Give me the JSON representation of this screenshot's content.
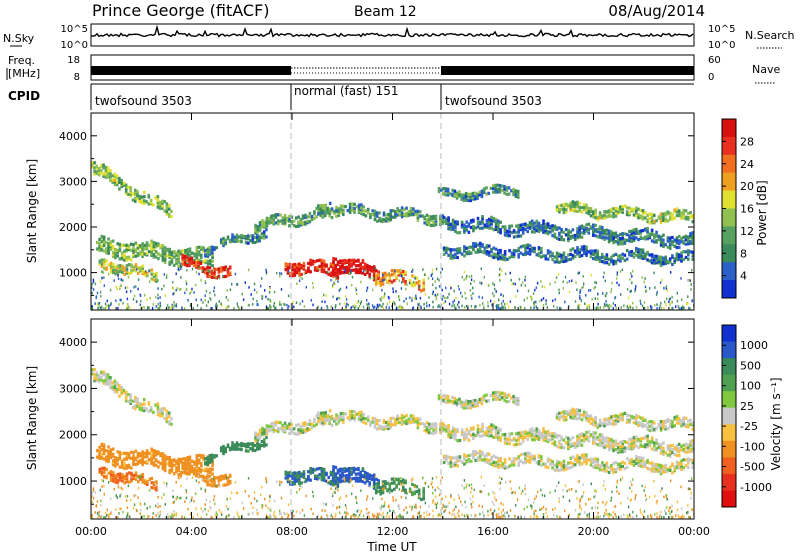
{
  "header": {
    "station": "Prince George (fitACF)",
    "beam": "Beam 12",
    "date": "08/Aug/2014"
  },
  "noise_panel": {
    "left_label": "N.Sky",
    "right_label": "N.Search",
    "left_ticks": [
      "10^5",
      "10^0"
    ],
    "right_ticks": [
      "10^5",
      "10^0"
    ]
  },
  "freq_panel": {
    "left_label_1": "Freq.",
    "left_label_2": "[MHz]",
    "right_label": "Nave",
    "left_ticks": [
      "18",
      "8"
    ],
    "right_ticks": [
      "60",
      "0"
    ]
  },
  "cpid": {
    "label": "CPID",
    "segments": [
      {
        "name": "twofsound 3503",
        "start_h": 0,
        "end_h": 8
      },
      {
        "name": "normal (fast) 151",
        "start_h": 8,
        "end_h": 14
      },
      {
        "name": "twofsound 3503",
        "start_h": 14,
        "end_h": 24
      }
    ]
  },
  "colors": {
    "power_scale": [
      "#1030d0",
      "#2a60c8",
      "#3a8a5a",
      "#58a060",
      "#90c050",
      "#e0e030",
      "#f0a020",
      "#f07020",
      "#e83020",
      "#d81010"
    ],
    "velocity_scale": [
      "#1030d0",
      "#2a58c8",
      "#3a8a5a",
      "#4fa050",
      "#80c840",
      "#c8c8c8",
      "#f8c040",
      "#f09020",
      "#f06020",
      "#e83020",
      "#e01010"
    ],
    "ground_scatter": "#c8c8c8"
  },
  "chart_data": [
    {
      "type": "heatmap",
      "name": "Power",
      "ylabel": "Slant Range [km]",
      "colorbar_label": "Power [dB]",
      "colorbar_ticks": [
        "28",
        "24",
        "20",
        "16",
        "12",
        "8",
        "4"
      ],
      "x_ticks": [
        "00:00",
        "04:00",
        "08:00",
        "12:00",
        "16:00",
        "20:00",
        "00:00"
      ],
      "y_ticks": [
        "1000",
        "2000",
        "3000",
        "4000"
      ],
      "ylim": [
        180,
        4500
      ],
      "xlim_hours": [
        0,
        24
      ],
      "scatter_bands": [
        {
          "t0": 0.0,
          "t1": 3.2,
          "r_start": 3300,
          "r_end": 2300,
          "width": 300,
          "power": 14
        },
        {
          "t0": 0.2,
          "t1": 4.8,
          "r_start": 1600,
          "r_end": 1300,
          "width": 400,
          "power": 13
        },
        {
          "t0": 0.3,
          "t1": 2.6,
          "r_start": 1250,
          "r_end": 900,
          "width": 250,
          "power": 16
        },
        {
          "t0": 3.6,
          "t1": 5.5,
          "r_start": 1200,
          "r_end": 1000,
          "width": 250,
          "power": 27
        },
        {
          "t0": 4.5,
          "t1": 7.0,
          "r_start": 1500,
          "r_end": 1900,
          "width": 200,
          "power": 9
        },
        {
          "t0": 6.5,
          "t1": 9.5,
          "r_start": 2000,
          "r_end": 2350,
          "width": 250,
          "power": 11
        },
        {
          "t0": 7.7,
          "t1": 9.8,
          "r_start": 1150,
          "r_end": 1050,
          "width": 300,
          "power": 28
        },
        {
          "t0": 9.6,
          "t1": 11.4,
          "r_start": 1250,
          "r_end": 950,
          "width": 350,
          "power": 30
        },
        {
          "t0": 9.0,
          "t1": 14.0,
          "r_start": 2400,
          "r_end": 2200,
          "width": 250,
          "power": 11
        },
        {
          "t0": 11.3,
          "t1": 13.2,
          "r_start": 900,
          "r_end": 800,
          "width": 300,
          "power": 21
        },
        {
          "t0": 13.8,
          "t1": 17.0,
          "r_start": 2700,
          "r_end": 2800,
          "width": 200,
          "power": 9
        },
        {
          "t0": 14.0,
          "t1": 24.0,
          "r_start": 2100,
          "r_end": 1700,
          "width": 300,
          "power": 8
        },
        {
          "t0": 14.0,
          "t1": 24.0,
          "r_start": 1500,
          "r_end": 1300,
          "width": 250,
          "power": 8
        },
        {
          "t0": 18.5,
          "t1": 24.0,
          "r_start": 2400,
          "r_end": 2200,
          "width": 250,
          "power": 14
        }
      ]
    },
    {
      "type": "heatmap",
      "name": "Velocity",
      "ylabel": "Slant Range [km]",
      "xlabel": "Time UT",
      "colorbar_label": "Velocity [m s⁻¹]",
      "colorbar_ticks": [
        "1000",
        "500",
        "100",
        "25",
        "-25",
        "-100",
        "-500",
        "-1000"
      ],
      "x_ticks": [
        "00:00",
        "04:00",
        "08:00",
        "12:00",
        "16:00",
        "20:00",
        "00:00"
      ],
      "y_ticks": [
        "1000",
        "2000",
        "3000",
        "4000"
      ],
      "ylim": [
        180,
        4500
      ],
      "xlim_hours": [
        0,
        24
      ],
      "scatter_bands": [
        {
          "t0": 0.0,
          "t1": 3.2,
          "r_start": 3300,
          "r_end": 2300,
          "width": 300,
          "velocity": 0
        },
        {
          "t0": 0.2,
          "t1": 4.8,
          "r_start": 1600,
          "r_end": 1300,
          "width": 400,
          "velocity": -150
        },
        {
          "t0": 0.3,
          "t1": 2.6,
          "r_start": 1250,
          "r_end": 900,
          "width": 250,
          "velocity": -300
        },
        {
          "t0": 3.6,
          "t1": 5.5,
          "r_start": 1200,
          "r_end": 1000,
          "width": 250,
          "velocity": -200
        },
        {
          "t0": 4.5,
          "t1": 7.0,
          "r_start": 1500,
          "r_end": 1900,
          "width": 200,
          "velocity": 150
        },
        {
          "t0": 6.5,
          "t1": 9.5,
          "r_start": 2000,
          "r_end": 2350,
          "width": 250,
          "velocity": 0
        },
        {
          "t0": 7.7,
          "t1": 9.8,
          "r_start": 1150,
          "r_end": 1050,
          "width": 300,
          "velocity": 250
        },
        {
          "t0": 9.6,
          "t1": 11.4,
          "r_start": 1250,
          "r_end": 950,
          "width": 350,
          "velocity": 300
        },
        {
          "t0": 9.0,
          "t1": 14.0,
          "r_start": 2400,
          "r_end": 2200,
          "width": 250,
          "velocity": 0
        },
        {
          "t0": 11.3,
          "t1": 13.2,
          "r_start": 900,
          "r_end": 800,
          "width": 300,
          "velocity": 120
        },
        {
          "t0": 13.8,
          "t1": 17.0,
          "r_start": 2700,
          "r_end": 2800,
          "width": 200,
          "velocity": 0
        },
        {
          "t0": 14.0,
          "t1": 24.0,
          "r_start": 2100,
          "r_end": 1700,
          "width": 300,
          "velocity": 0
        },
        {
          "t0": 14.0,
          "t1": 24.0,
          "r_start": 1500,
          "r_end": 1300,
          "width": 250,
          "velocity": 0
        },
        {
          "t0": 18.5,
          "t1": 24.0,
          "r_start": 2400,
          "r_end": 2200,
          "width": 250,
          "velocity": 0
        }
      ]
    }
  ]
}
